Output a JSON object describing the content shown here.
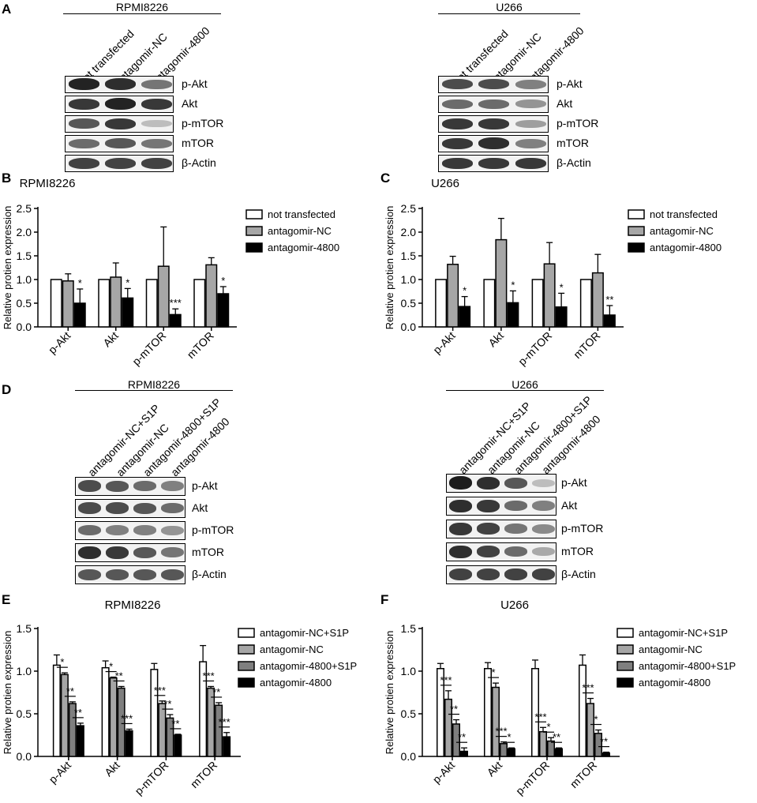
{
  "panels": {
    "A": {
      "letter": "A",
      "left_title": "RPMI8226",
      "right_title": "U266",
      "lanes": [
        "not transfected",
        "antagomir-NC",
        "antagomir-4800"
      ],
      "proteins": [
        "p-Akt",
        "Akt",
        "p-mTOR",
        "mTOR",
        "β-Actin"
      ]
    },
    "D": {
      "letter": "D",
      "left_title": "RPMI8226",
      "right_title": "U266",
      "lanes": [
        "antagomir-NC+S1P",
        "antagomir-NC",
        "antagomir-4800+S1P",
        "antagomir-4800"
      ],
      "proteins": [
        "p-Akt",
        "Akt",
        "p-mTOR",
        "mTOR",
        "β-Actin"
      ]
    },
    "B": {
      "letter": "B"
    },
    "C": {
      "letter": "C"
    },
    "E": {
      "letter": "E"
    },
    "F": {
      "letter": "F"
    }
  },
  "colors": {
    "white_bar": "#ffffff",
    "light_gray": "#a6a6a6",
    "mid_gray": "#7f7f7f",
    "black": "#000000"
  },
  "chart_data": [
    {
      "id": "B",
      "type": "bar",
      "title": "RPMI8226",
      "ylabel": "Relative protien expression",
      "ylim": [
        0,
        2.5
      ],
      "yticks": [
        "0.0",
        "0.5",
        "1.0",
        "1.5",
        "2.0",
        "2.5"
      ],
      "categories": [
        "p-Akt",
        "Akt",
        "p-mTOR",
        "mTOR"
      ],
      "series": [
        {
          "name": "not transfected",
          "color": "#ffffff",
          "values": [
            1.0,
            1.0,
            1.0,
            1.0
          ],
          "errors": [
            0,
            0,
            0,
            0
          ]
        },
        {
          "name": "antagomir-NC",
          "color": "#a6a6a6",
          "values": [
            0.97,
            1.05,
            1.28,
            1.31
          ],
          "errors": [
            0.15,
            0.3,
            0.83,
            0.15
          ]
        },
        {
          "name": "antagomir-4800",
          "color": "#000000",
          "values": [
            0.5,
            0.61,
            0.26,
            0.7
          ],
          "errors": [
            0.3,
            0.2,
            0.12,
            0.15
          ]
        }
      ],
      "annotations": [
        {
          "category": 0,
          "series": 2,
          "text": "*"
        },
        {
          "category": 1,
          "series": 2,
          "text": "*"
        },
        {
          "category": 2,
          "series": 2,
          "text": "***"
        },
        {
          "category": 3,
          "series": 2,
          "text": "*"
        }
      ],
      "legend": "right"
    },
    {
      "id": "C",
      "type": "bar",
      "title": "U266",
      "ylabel": "Relative protien expression",
      "ylim": [
        0,
        2.5
      ],
      "yticks": [
        "0.0",
        "0.5",
        "1.0",
        "1.5",
        "2.0",
        "2.5"
      ],
      "categories": [
        "p-Akt",
        "Akt",
        "p-mTOR",
        "mTOR"
      ],
      "series": [
        {
          "name": "not transfected",
          "color": "#ffffff",
          "values": [
            1.0,
            1.0,
            1.0,
            1.0
          ],
          "errors": [
            0,
            0,
            0,
            0
          ]
        },
        {
          "name": "antagomir-NC",
          "color": "#a6a6a6",
          "values": [
            1.32,
            1.84,
            1.33,
            1.14
          ],
          "errors": [
            0.17,
            0.45,
            0.45,
            0.39
          ]
        },
        {
          "name": "antagomir-4800",
          "color": "#000000",
          "values": [
            0.43,
            0.51,
            0.42,
            0.25
          ],
          "errors": [
            0.21,
            0.25,
            0.29,
            0.2
          ]
        }
      ],
      "annotations": [
        {
          "category": 0,
          "series": 2,
          "text": "*"
        },
        {
          "category": 1,
          "series": 2,
          "text": "*"
        },
        {
          "category": 2,
          "series": 2,
          "text": "*"
        },
        {
          "category": 3,
          "series": 2,
          "text": "**"
        }
      ],
      "legend": "right"
    },
    {
      "id": "E",
      "type": "bar",
      "title": "RPMI8226",
      "ylabel": "Relative protien expression",
      "ylim": [
        0,
        1.5
      ],
      "yticks": [
        "0.0",
        "0.5",
        "1.0",
        "1.5"
      ],
      "categories": [
        "p-Akt",
        "Akt",
        "p-mTOR",
        "mTOR"
      ],
      "series": [
        {
          "name": "antagomir-NC+S1P",
          "color": "#ffffff",
          "values": [
            1.07,
            1.04,
            1.02,
            1.11
          ],
          "errors": [
            0.12,
            0.08,
            0.07,
            0.19
          ]
        },
        {
          "name": "antagomir-NC",
          "color": "#a6a6a6",
          "values": [
            0.96,
            0.92,
            0.62,
            0.8
          ],
          "errors": [
            0.02,
            0.01,
            0.03,
            0.02
          ]
        },
        {
          "name": "antagomir-4800+S1P",
          "color": "#7f7f7f",
          "values": [
            0.62,
            0.8,
            0.45,
            0.6
          ],
          "errors": [
            0.02,
            0.02,
            0.04,
            0.03
          ]
        },
        {
          "name": "antagomir-4800",
          "color": "#000000",
          "values": [
            0.36,
            0.3,
            0.25,
            0.23
          ],
          "errors": [
            0.03,
            0.02,
            0.01,
            0.05
          ]
        }
      ],
      "brackets": [
        {
          "category": 0,
          "from": 0,
          "to": 1,
          "text": "*"
        },
        {
          "category": 0,
          "from": 1,
          "to": 2,
          "text": "**"
        },
        {
          "category": 0,
          "from": 2,
          "to": 3,
          "text": "**"
        },
        {
          "category": 1,
          "from": 0,
          "to": 1,
          "text": "*"
        },
        {
          "category": 1,
          "from": 1,
          "to": 2,
          "text": "**"
        },
        {
          "category": 1,
          "from": 2,
          "to": 3,
          "text": "***"
        },
        {
          "category": 2,
          "from": 0,
          "to": 1,
          "text": "***"
        },
        {
          "category": 2,
          "from": 1,
          "to": 2,
          "text": "**"
        },
        {
          "category": 2,
          "from": 2,
          "to": 3,
          "text": "**"
        },
        {
          "category": 3,
          "from": 0,
          "to": 1,
          "text": "***"
        },
        {
          "category": 3,
          "from": 1,
          "to": 2,
          "text": "**"
        },
        {
          "category": 3,
          "from": 2,
          "to": 3,
          "text": "***"
        }
      ],
      "legend": "right"
    },
    {
      "id": "F",
      "type": "bar",
      "title": "U266",
      "ylabel": "Relative protien expression",
      "ylim": [
        0,
        1.5
      ],
      "yticks": [
        "0.0",
        "0.5",
        "1.0",
        "1.5"
      ],
      "categories": [
        "p-Akt",
        "Akt",
        "p-mTOR",
        "mTOR"
      ],
      "series": [
        {
          "name": "antagomir-NC+S1P",
          "color": "#ffffff",
          "values": [
            1.03,
            1.03,
            1.03,
            1.07
          ],
          "errors": [
            0.06,
            0.07,
            0.1,
            0.12
          ]
        },
        {
          "name": "antagomir-NC",
          "color": "#a6a6a6",
          "values": [
            0.67,
            0.81,
            0.29,
            0.62
          ],
          "errors": [
            0.1,
            0.05,
            0.05,
            0.06
          ]
        },
        {
          "name": "antagomir-4800+S1P",
          "color": "#7f7f7f",
          "values": [
            0.38,
            0.15,
            0.18,
            0.27
          ],
          "errors": [
            0.05,
            0.02,
            0.04,
            0.04
          ]
        },
        {
          "name": "antagomir-4800",
          "color": "#000000",
          "values": [
            0.06,
            0.09,
            0.09,
            0.04
          ],
          "errors": [
            0.04,
            0.01,
            0.01,
            0.01
          ]
        }
      ],
      "brackets": [
        {
          "category": 0,
          "from": 0,
          "to": 1,
          "text": "***"
        },
        {
          "category": 0,
          "from": 1,
          "to": 2,
          "text": "**"
        },
        {
          "category": 0,
          "from": 2,
          "to": 3,
          "text": "**"
        },
        {
          "category": 1,
          "from": 0,
          "to": 1,
          "text": "*"
        },
        {
          "category": 1,
          "from": 1,
          "to": 2,
          "text": "***"
        },
        {
          "category": 1,
          "from": 2,
          "to": 3,
          "text": "*"
        },
        {
          "category": 2,
          "from": 0,
          "to": 1,
          "text": "***"
        },
        {
          "category": 2,
          "from": 1,
          "to": 2,
          "text": "*"
        },
        {
          "category": 2,
          "from": 2,
          "to": 3,
          "text": "**"
        },
        {
          "category": 3,
          "from": 0,
          "to": 1,
          "text": "***"
        },
        {
          "category": 3,
          "from": 1,
          "to": 2,
          "text": "*"
        },
        {
          "category": 3,
          "from": 2,
          "to": 3,
          "text": "**"
        }
      ],
      "legend": "right"
    }
  ]
}
